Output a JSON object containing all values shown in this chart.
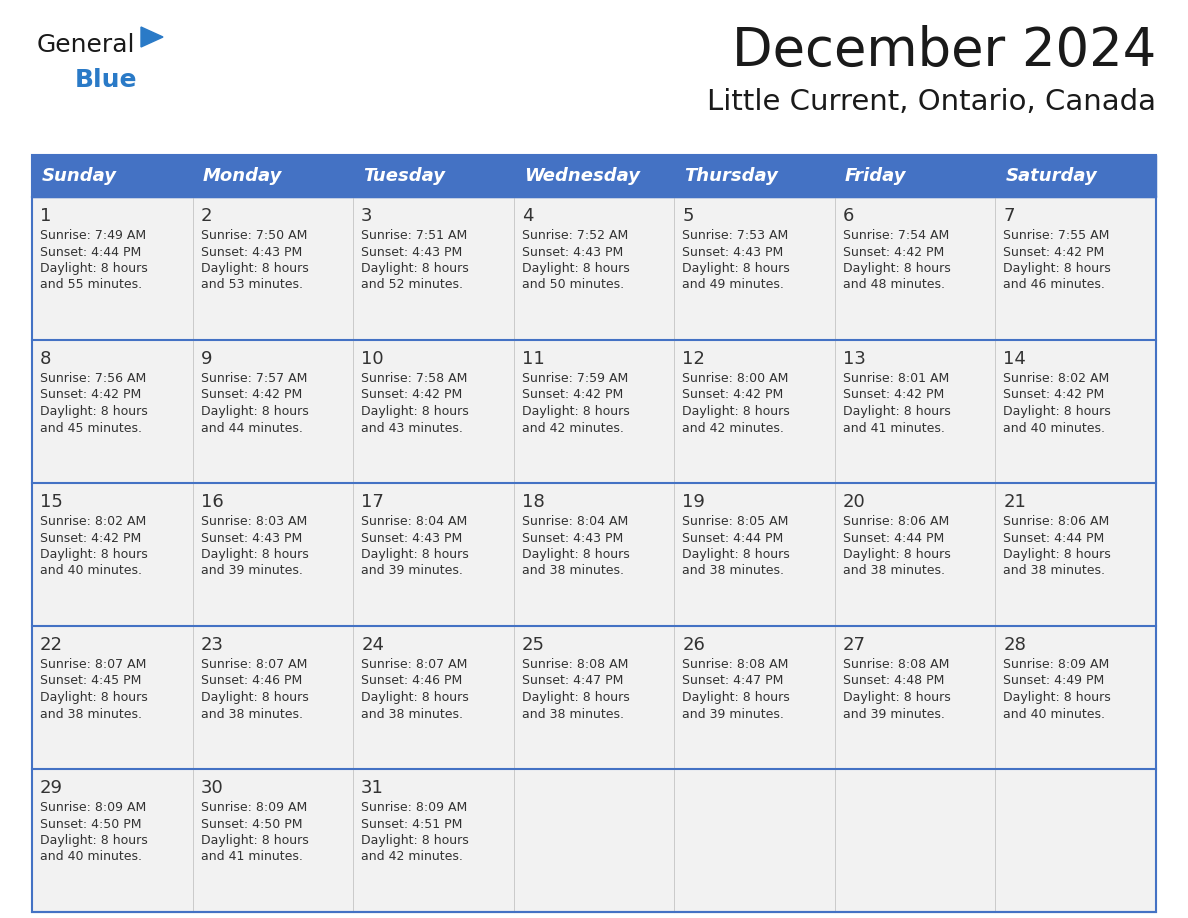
{
  "title": "December 2024",
  "subtitle": "Little Current, Ontario, Canada",
  "header_color": "#4472C4",
  "header_text_color": "#FFFFFF",
  "cell_bg_color": "#F2F2F2",
  "border_color": "#4472C4",
  "text_color": "#333333",
  "day_headers": [
    "Sunday",
    "Monday",
    "Tuesday",
    "Wednesday",
    "Thursday",
    "Friday",
    "Saturday"
  ],
  "weeks": [
    [
      {
        "day": 1,
        "sunrise": "7:49 AM",
        "sunset": "4:44 PM",
        "daylight_hours": 8,
        "daylight_min": 55
      },
      {
        "day": 2,
        "sunrise": "7:50 AM",
        "sunset": "4:43 PM",
        "daylight_hours": 8,
        "daylight_min": 53
      },
      {
        "day": 3,
        "sunrise": "7:51 AM",
        "sunset": "4:43 PM",
        "daylight_hours": 8,
        "daylight_min": 52
      },
      {
        "day": 4,
        "sunrise": "7:52 AM",
        "sunset": "4:43 PM",
        "daylight_hours": 8,
        "daylight_min": 50
      },
      {
        "day": 5,
        "sunrise": "7:53 AM",
        "sunset": "4:43 PM",
        "daylight_hours": 8,
        "daylight_min": 49
      },
      {
        "day": 6,
        "sunrise": "7:54 AM",
        "sunset": "4:42 PM",
        "daylight_hours": 8,
        "daylight_min": 48
      },
      {
        "day": 7,
        "sunrise": "7:55 AM",
        "sunset": "4:42 PM",
        "daylight_hours": 8,
        "daylight_min": 46
      }
    ],
    [
      {
        "day": 8,
        "sunrise": "7:56 AM",
        "sunset": "4:42 PM",
        "daylight_hours": 8,
        "daylight_min": 45
      },
      {
        "day": 9,
        "sunrise": "7:57 AM",
        "sunset": "4:42 PM",
        "daylight_hours": 8,
        "daylight_min": 44
      },
      {
        "day": 10,
        "sunrise": "7:58 AM",
        "sunset": "4:42 PM",
        "daylight_hours": 8,
        "daylight_min": 43
      },
      {
        "day": 11,
        "sunrise": "7:59 AM",
        "sunset": "4:42 PM",
        "daylight_hours": 8,
        "daylight_min": 42
      },
      {
        "day": 12,
        "sunrise": "8:00 AM",
        "sunset": "4:42 PM",
        "daylight_hours": 8,
        "daylight_min": 42
      },
      {
        "day": 13,
        "sunrise": "8:01 AM",
        "sunset": "4:42 PM",
        "daylight_hours": 8,
        "daylight_min": 41
      },
      {
        "day": 14,
        "sunrise": "8:02 AM",
        "sunset": "4:42 PM",
        "daylight_hours": 8,
        "daylight_min": 40
      }
    ],
    [
      {
        "day": 15,
        "sunrise": "8:02 AM",
        "sunset": "4:42 PM",
        "daylight_hours": 8,
        "daylight_min": 40
      },
      {
        "day": 16,
        "sunrise": "8:03 AM",
        "sunset": "4:43 PM",
        "daylight_hours": 8,
        "daylight_min": 39
      },
      {
        "day": 17,
        "sunrise": "8:04 AM",
        "sunset": "4:43 PM",
        "daylight_hours": 8,
        "daylight_min": 39
      },
      {
        "day": 18,
        "sunrise": "8:04 AM",
        "sunset": "4:43 PM",
        "daylight_hours": 8,
        "daylight_min": 38
      },
      {
        "day": 19,
        "sunrise": "8:05 AM",
        "sunset": "4:44 PM",
        "daylight_hours": 8,
        "daylight_min": 38
      },
      {
        "day": 20,
        "sunrise": "8:06 AM",
        "sunset": "4:44 PM",
        "daylight_hours": 8,
        "daylight_min": 38
      },
      {
        "day": 21,
        "sunrise": "8:06 AM",
        "sunset": "4:44 PM",
        "daylight_hours": 8,
        "daylight_min": 38
      }
    ],
    [
      {
        "day": 22,
        "sunrise": "8:07 AM",
        "sunset": "4:45 PM",
        "daylight_hours": 8,
        "daylight_min": 38
      },
      {
        "day": 23,
        "sunrise": "8:07 AM",
        "sunset": "4:46 PM",
        "daylight_hours": 8,
        "daylight_min": 38
      },
      {
        "day": 24,
        "sunrise": "8:07 AM",
        "sunset": "4:46 PM",
        "daylight_hours": 8,
        "daylight_min": 38
      },
      {
        "day": 25,
        "sunrise": "8:08 AM",
        "sunset": "4:47 PM",
        "daylight_hours": 8,
        "daylight_min": 38
      },
      {
        "day": 26,
        "sunrise": "8:08 AM",
        "sunset": "4:47 PM",
        "daylight_hours": 8,
        "daylight_min": 39
      },
      {
        "day": 27,
        "sunrise": "8:08 AM",
        "sunset": "4:48 PM",
        "daylight_hours": 8,
        "daylight_min": 39
      },
      {
        "day": 28,
        "sunrise": "8:09 AM",
        "sunset": "4:49 PM",
        "daylight_hours": 8,
        "daylight_min": 40
      }
    ],
    [
      {
        "day": 29,
        "sunrise": "8:09 AM",
        "sunset": "4:50 PM",
        "daylight_hours": 8,
        "daylight_min": 40
      },
      {
        "day": 30,
        "sunrise": "8:09 AM",
        "sunset": "4:50 PM",
        "daylight_hours": 8,
        "daylight_min": 41
      },
      {
        "day": 31,
        "sunrise": "8:09 AM",
        "sunset": "4:51 PM",
        "daylight_hours": 8,
        "daylight_min": 42
      },
      null,
      null,
      null,
      null
    ]
  ],
  "logo_color_general": "#1a1a1a",
  "logo_color_blue": "#2A7AC7",
  "fig_width": 11.88,
  "fig_height": 9.18,
  "fig_dpi": 100
}
